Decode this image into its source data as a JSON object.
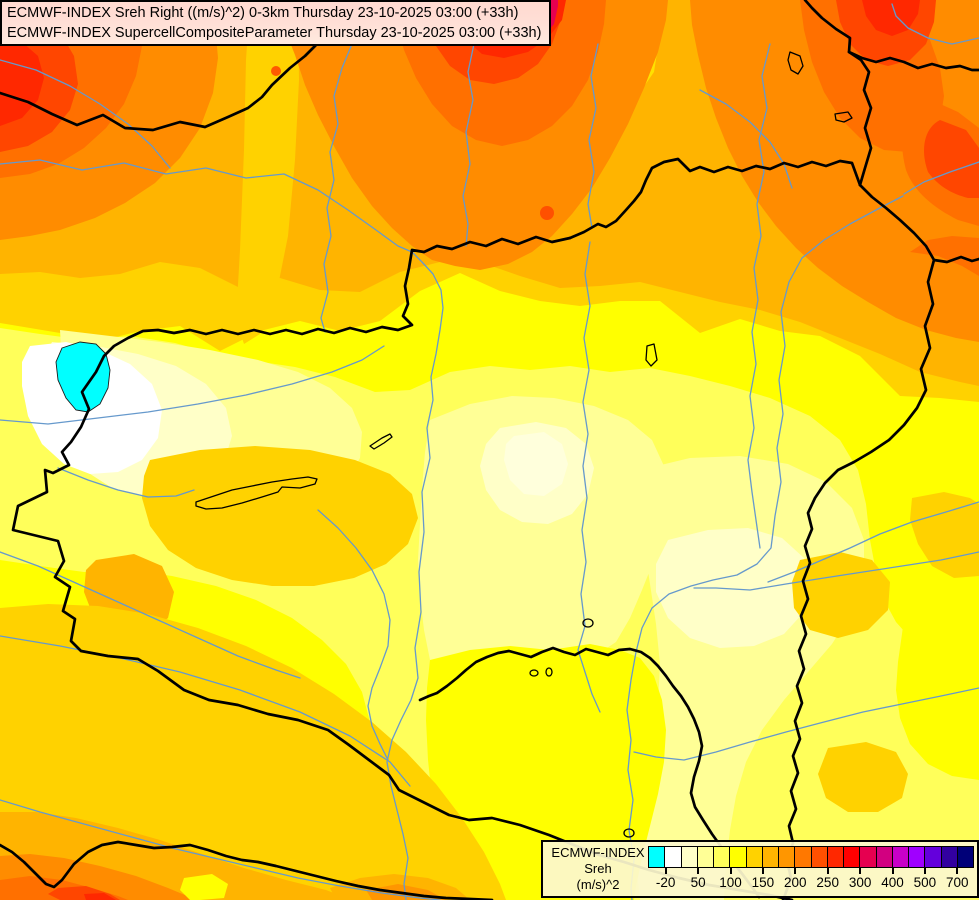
{
  "title_bar": {
    "line1": "ECMWF-INDEX Sreh Right ((m/s)^2) 0-3km Thursday 23-10-2025 03:00 (+33h)",
    "line2": "ECMWF-INDEX SupercellCompositeParameter Thursday 23-10-2025 03:00 (+33h)"
  },
  "legend": {
    "title_lines": [
      "ECMWF-INDEX",
      "Sreh",
      "(m/s)^2"
    ],
    "palette": [
      "#00FFFF",
      "#FFFFFF",
      "#FFFFC8",
      "#FFFF96",
      "#FFFF5A",
      "#FFFF00",
      "#FFD200",
      "#FFB400",
      "#FF9600",
      "#FF7800",
      "#FF5000",
      "#FF2800",
      "#FF0000",
      "#E60050",
      "#D20080",
      "#C800C8",
      "#A000FF",
      "#6400DC",
      "#3200A0",
      "#000078"
    ],
    "ticks": [
      {
        "label": "-20",
        "boundary": 1
      },
      {
        "label": "50",
        "boundary": 3
      },
      {
        "label": "100",
        "boundary": 5
      },
      {
        "label": "150",
        "boundary": 7
      },
      {
        "label": "200",
        "boundary": 9
      },
      {
        "label": "250",
        "boundary": 11
      },
      {
        "label": "300",
        "boundary": 13
      },
      {
        "label": "400",
        "boundary": 15
      },
      {
        "label": "500",
        "boundary": 17
      },
      {
        "label": "700",
        "boundary": 19
      }
    ]
  },
  "map": {
    "field_colors": {
      "negative_sreh": "#00FFFF",
      "minimum_white": "#FFFFFF",
      "low_cream": "#FFFFC8",
      "pale_yellow": "#FFFF96",
      "yellow": "#FFFF00",
      "gold": "#FFD200",
      "amber": "#FFB400",
      "orange": "#FF8C00",
      "deep_orange": "#FF7000",
      "red_orange": "#FF4600",
      "red": "#FF2800",
      "crimson": "#E60050"
    },
    "line_colors": {
      "country_border": "#000000",
      "river": "#6699CC",
      "lake_outline": "#000000"
    }
  }
}
